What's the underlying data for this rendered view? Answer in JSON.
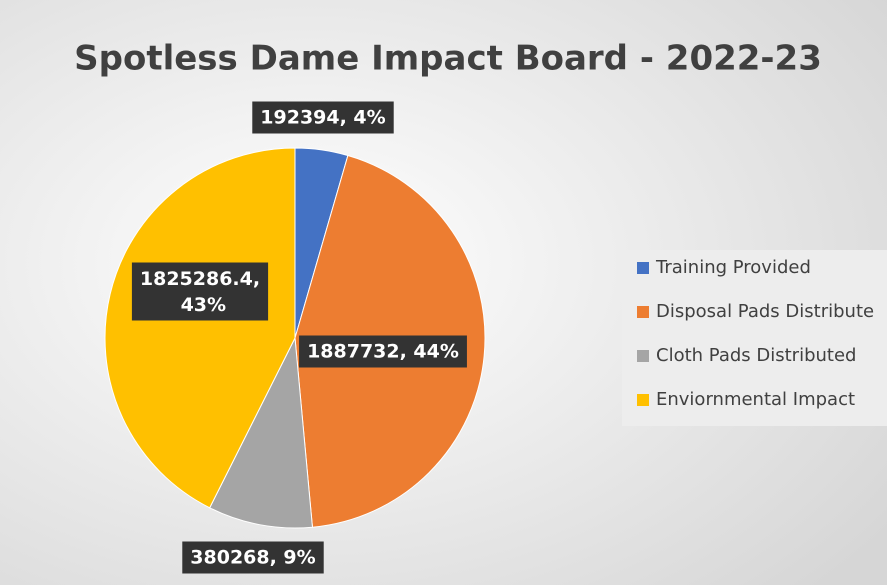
{
  "chart_data": {
    "type": "pie",
    "title": "Spotless Dame Impact Board - 2022-23",
    "categories": [
      "Training Provided",
      "Disposal Pads Distribute",
      "Cloth Pads Distributed",
      "Enviornmental Impact"
    ],
    "values": [
      192394,
      1887732,
      380268,
      1825286.4
    ],
    "value_labels": [
      "192394, 4%",
      "1887732, 44%",
      "380268, 9%",
      "1825286.4, 43%"
    ],
    "colors": [
      "#4472c4",
      "#ed7d31",
      "#a5a5a5",
      "#ffc000"
    ],
    "legend": "right"
  }
}
